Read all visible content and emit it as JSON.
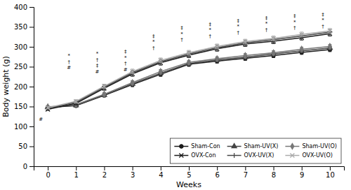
{
  "chart_data": {
    "type": "line",
    "xlabel": "Weeks",
    "ylabel": "Body weight (g)",
    "x": [
      0,
      1,
      2,
      3,
      4,
      5,
      6,
      7,
      8,
      9,
      10
    ],
    "xlim": [
      -0.5,
      10.5
    ],
    "xticks": [
      0,
      1,
      2,
      3,
      4,
      5,
      6,
      7,
      8,
      9,
      10
    ],
    "ylim": [
      0,
      400
    ],
    "yticks": [
      0,
      50,
      100,
      150,
      200,
      250,
      300,
      350,
      400
    ],
    "legend": "lower right",
    "series": [
      {
        "name": "Sham-Con",
        "color": "#1a1a1a",
        "marker": "circle",
        "line_style": "solid",
        "values": [
          148,
          152,
          178,
          205,
          231,
          256,
          264,
          271,
          278,
          286,
          293
        ],
        "errors": [
          2.5,
          3,
          4,
          5,
          5,
          5,
          5,
          5,
          5,
          5,
          5
        ]
      },
      {
        "name": "Sham-UV(X)",
        "color": "#444444",
        "marker": "triangle",
        "line_style": "solid",
        "values": [
          148,
          153,
          179,
          207,
          234,
          258,
          267,
          274,
          282,
          290,
          297
        ],
        "errors": [
          2.5,
          3,
          4,
          5,
          5,
          5,
          5,
          5,
          5,
          5,
          5
        ]
      },
      {
        "name": "Sham-UV(O)",
        "color": "#777777",
        "marker": "diamond",
        "line_style": "solid",
        "values": [
          149,
          155,
          181,
          210,
          238,
          261,
          270,
          278,
          285,
          294,
          301
        ],
        "errors": [
          2.5,
          3,
          4,
          5,
          5,
          5,
          5,
          5,
          5,
          5,
          5
        ]
      },
      {
        "name": "OVX-Con",
        "color": "#1a1a1a",
        "marker": "x",
        "line_style": "solid",
        "values": [
          143,
          158,
          196,
          232,
          260,
          279,
          295,
          307,
          314,
          323,
          333
        ],
        "errors": [
          2.5,
          4,
          5,
          6,
          6,
          6,
          6,
          6,
          6,
          6,
          6
        ]
      },
      {
        "name": "OVX-UV(X)",
        "color": "#444444",
        "marker": "plus",
        "line_style": "solid",
        "values": [
          145,
          161,
          199,
          235,
          263,
          282,
          298,
          310,
          318,
          327,
          337
        ],
        "errors": [
          2.5,
          4,
          5,
          6,
          6,
          6,
          6,
          6,
          6,
          6,
          6
        ]
      },
      {
        "name": "OVX-UV(O)",
        "color": "#aaaaaa",
        "marker": "x",
        "line_style": "solid",
        "values": [
          147,
          163,
          201,
          238,
          266,
          285,
          301,
          313,
          321,
          331,
          340
        ],
        "errors": [
          2.5,
          4,
          5,
          6,
          6,
          6,
          6,
          6,
          6,
          6,
          6
        ]
      }
    ],
    "annotations": [
      {
        "x": 0,
        "y": 110,
        "labels": [
          "#"
        ]
      },
      {
        "x": 1,
        "y": 270,
        "labels": [
          "*",
          "†",
          "#"
        ]
      },
      {
        "x": 2,
        "y": 275,
        "labels": [
          "*",
          "†",
          "‡",
          "#"
        ]
      },
      {
        "x": 3,
        "y": 280,
        "labels": [
          "‡",
          "*",
          "†",
          "#"
        ]
      },
      {
        "x": 4,
        "y": 320,
        "labels": [
          "‡",
          "*",
          "†"
        ]
      },
      {
        "x": 5,
        "y": 340,
        "labels": [
          "‡",
          "*",
          "†"
        ]
      },
      {
        "x": 6,
        "y": 350,
        "labels": [
          "‡",
          "*",
          "†"
        ]
      },
      {
        "x": 7,
        "y": 358,
        "labels": [
          "‡",
          "*",
          "†"
        ]
      },
      {
        "x": 8,
        "y": 365,
        "labels": [
          "‡",
          "*",
          "†"
        ]
      },
      {
        "x": 9,
        "y": 370,
        "labels": [
          "‡",
          "*",
          "†"
        ]
      },
      {
        "x": 10,
        "y": 374,
        "labels": [
          "‡",
          "*",
          "†"
        ]
      }
    ]
  }
}
